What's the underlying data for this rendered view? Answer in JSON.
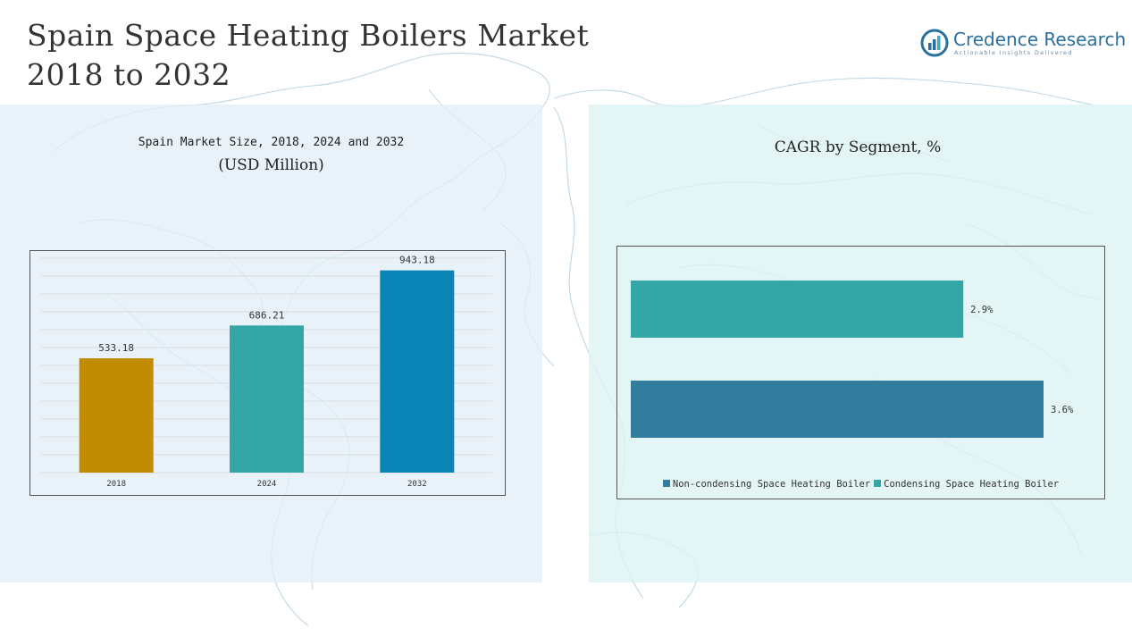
{
  "header": {
    "title_line1": "Spain Space Heating Boilers Market",
    "title_line2": "2018 to 2032"
  },
  "logo": {
    "name": "Credence Research",
    "tagline": "Actionable Insights Delivered",
    "icon": "bar-chart-logo-icon",
    "color": "#2a6f9f"
  },
  "left_panel": {
    "subtitle": "Spain Market Size, 2018, 2024 and 2032",
    "unit": "(USD Million)"
  },
  "right_panel": {
    "title": "CAGR by Segment, %"
  },
  "chart_data": [
    {
      "type": "bar",
      "title": "Spain Market Size, 2018, 2024 and 2032",
      "ylabel": "(USD Million)",
      "categories": [
        "2018",
        "2024",
        "2032"
      ],
      "values": [
        533.18,
        686.21,
        943.18
      ],
      "labels": [
        "533.18",
        "686.21",
        "943.18"
      ],
      "colors": [
        "#c28c00",
        "#35a6a6",
        "#0a84b5"
      ],
      "ylim": [
        0,
        1000
      ],
      "grid": true
    },
    {
      "type": "bar",
      "orientation": "horizontal",
      "title": "CAGR by Segment, %",
      "categories": [
        "Condensing Space Heating Boiler",
        "Non-condensing Space Heating Boiler"
      ],
      "values": [
        2.9,
        3.6
      ],
      "labels": [
        "2.9%",
        "3.6%"
      ],
      "colors": [
        "#35a6a6",
        "#327d9e"
      ],
      "xlim": [
        0,
        3.6
      ],
      "grid": false,
      "legend": [
        {
          "name": "Non-condensing Space Heating Boiler",
          "color": "#327d9e"
        },
        {
          "name": "Condensing Space Heating Boiler",
          "color": "#35a6a6"
        }
      ],
      "legend_position": "bottom"
    }
  ]
}
